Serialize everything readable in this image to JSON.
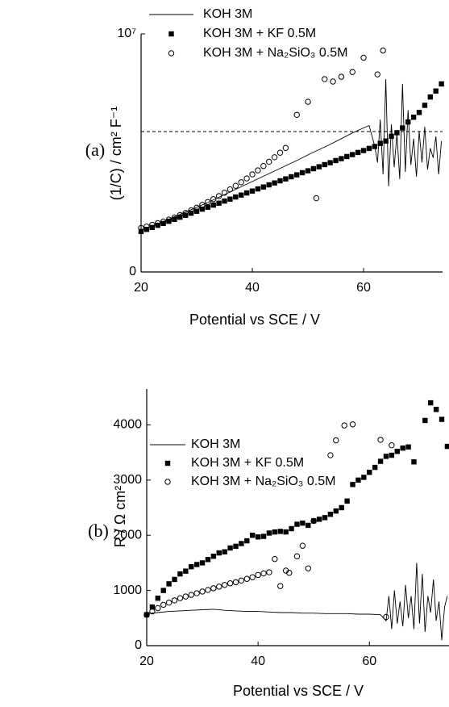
{
  "chart_data": [
    {
      "type": "line",
      "panel_label": "(a)",
      "x_label": "Potential vs SCE / V",
      "y_label": "(1/C) / cm² F⁻¹",
      "xlim": [
        20,
        74.2
      ],
      "xticks": [
        20,
        40,
        60
      ],
      "ylim": [
        0,
        10000000
      ],
      "yticks": [
        0,
        {
          "value": 10000000,
          "label": "10⁷"
        }
      ],
      "reference_line": 5900000,
      "reference_line_style": "dashed",
      "series": [
        {
          "name": "KOH 3M",
          "style": "line",
          "color": "#000000",
          "x": [
            20,
            22,
            24,
            26,
            28,
            30,
            32,
            34,
            36,
            38,
            40,
            42,
            44,
            46,
            48,
            50,
            52,
            54,
            56,
            58,
            60,
            61,
            62,
            62.5,
            63,
            63.5,
            64,
            64.5,
            65,
            65.5,
            66,
            66.5,
            67,
            67.5,
            68,
            68.5,
            69,
            69.5,
            70,
            70.5,
            71,
            71.5,
            72,
            72.5,
            73,
            73.5,
            74
          ],
          "values": [
            1750000,
            1930000,
            2120000,
            2320000,
            2520000,
            2720000,
            2920000,
            3140000,
            3360000,
            3580000,
            3800000,
            4020000,
            4240000,
            4460000,
            4680000,
            4920000,
            5140000,
            5360000,
            5600000,
            5840000,
            6050000,
            6150000,
            5300000,
            4600000,
            6400000,
            4100000,
            8100000,
            3600000,
            6200000,
            4400000,
            5800000,
            3900000,
            7900000,
            4200000,
            6800000,
            4500000,
            5600000,
            4000000,
            5900000,
            4600000,
            6100000,
            4300000,
            5200000,
            4800000,
            5700000,
            4100000,
            5500000
          ]
        },
        {
          "name": "KOH 3M + KF 0.5M",
          "style": "square",
          "color": "#000000",
          "x": [
            20,
            21,
            22,
            23,
            24,
            25,
            26,
            27,
            28,
            29,
            30,
            31,
            32,
            33,
            34,
            35,
            36,
            37,
            38,
            39,
            40,
            41,
            42,
            43,
            44,
            45,
            46,
            47,
            48,
            49,
            50,
            51,
            52,
            53,
            54,
            55,
            56,
            57,
            58,
            59,
            60,
            61,
            62,
            63,
            64,
            65,
            66,
            67,
            68,
            69,
            70,
            71,
            72,
            73,
            74
          ],
          "values": [
            1700000,
            1790000,
            1870000,
            1960000,
            2040000,
            2130000,
            2210000,
            2300000,
            2380000,
            2470000,
            2550000,
            2640000,
            2720000,
            2810000,
            2890000,
            2980000,
            3060000,
            3150000,
            3230000,
            3320000,
            3400000,
            3490000,
            3570000,
            3660000,
            3740000,
            3830000,
            3910000,
            4000000,
            4080000,
            4170000,
            4250000,
            4340000,
            4420000,
            4510000,
            4590000,
            4680000,
            4760000,
            4850000,
            4930000,
            5020000,
            5100000,
            5190000,
            5270000,
            5400000,
            5500000,
            5700000,
            5850000,
            6050000,
            6300000,
            6500000,
            6700000,
            7000000,
            7350000,
            7600000,
            7900000
          ]
        },
        {
          "name": "KOH 3M + Na₂SiO₃ 0.5M",
          "style": "circle",
          "color": "#000000",
          "x": [
            20,
            21,
            22,
            23,
            24,
            25,
            26,
            27,
            28,
            29,
            30,
            31,
            32,
            33,
            34,
            35,
            36,
            37,
            38,
            39,
            40,
            41,
            42,
            43,
            44,
            45,
            46,
            48,
            50,
            51.5,
            53,
            54.5,
            56,
            58,
            60,
            62.5,
            63.5
          ],
          "values": [
            1850000,
            1910000,
            1980000,
            2050000,
            2120000,
            2200000,
            2290000,
            2390000,
            2480000,
            2590000,
            2700000,
            2820000,
            2940000,
            3060000,
            3190000,
            3330000,
            3470000,
            3620000,
            3770000,
            3930000,
            4100000,
            4270000,
            4450000,
            4630000,
            4820000,
            5010000,
            5210000,
            6600000,
            7150000,
            3100000,
            8100000,
            8000000,
            8200000,
            8400000,
            9000000,
            8300000,
            9300000
          ]
        }
      ]
    },
    {
      "type": "line",
      "panel_label": "(b)",
      "x_label": "Potential vs SCE / V",
      "y_label": "R / Ω cm²",
      "xlim": [
        20,
        74.3
      ],
      "xticks": [
        20,
        40,
        60
      ],
      "ylim": [
        0,
        4650
      ],
      "yticks": [
        0,
        1000,
        2000,
        3000,
        4000
      ],
      "series": [
        {
          "name": "KOH 3M",
          "style": "line",
          "color": "#000000",
          "x": [
            20,
            22,
            24,
            26,
            28,
            30,
            32,
            34,
            36,
            38,
            40,
            42,
            44,
            46,
            48,
            50,
            52,
            54,
            56,
            58,
            60,
            62,
            63,
            63.5,
            64,
            64.5,
            65,
            65.5,
            66,
            66.5,
            67,
            67.5,
            68,
            68.5,
            69,
            69.5,
            70,
            70.5,
            71,
            71.5,
            72,
            72.5,
            73,
            73.5,
            74
          ],
          "values": [
            580,
            600,
            620,
            630,
            640,
            650,
            660,
            640,
            630,
            620,
            620,
            610,
            600,
            600,
            590,
            590,
            580,
            580,
            580,
            570,
            570,
            560,
            450,
            900,
            300,
            1000,
            400,
            800,
            350,
            1100,
            500,
            900,
            300,
            1500,
            400,
            1300,
            250,
            900,
            600,
            1200,
            450,
            800,
            100,
            700,
            900
          ]
        },
        {
          "name": "KOH 3M + KF 0.5M",
          "style": "square",
          "color": "#000000",
          "x": [
            20,
            21,
            22,
            23,
            24,
            25,
            26,
            27,
            28,
            29,
            30,
            31,
            32,
            33,
            34,
            35,
            36,
            37,
            38,
            39,
            40,
            41,
            42,
            43,
            44,
            45,
            46,
            47,
            48,
            49,
            50,
            51,
            52,
            53,
            54,
            55,
            56,
            57,
            58,
            59,
            60,
            61,
            62,
            63,
            64,
            65,
            66,
            67,
            68,
            70,
            71,
            72,
            73,
            74
          ],
          "values": [
            560,
            700,
            860,
            1000,
            1120,
            1200,
            1300,
            1350,
            1430,
            1470,
            1500,
            1560,
            1620,
            1680,
            1700,
            1770,
            1800,
            1850,
            1900,
            2000,
            1970,
            1980,
            2040,
            2060,
            2070,
            2060,
            2120,
            2200,
            2220,
            2180,
            2260,
            2290,
            2320,
            2380,
            2440,
            2500,
            2620,
            2920,
            3000,
            3050,
            3140,
            3230,
            3340,
            3430,
            3450,
            3520,
            3580,
            3600,
            3330,
            4080,
            4400,
            4280,
            4100,
            3610
          ]
        },
        {
          "name": "KOH 3M + Na₂SiO₃ 0.5M",
          "style": "circle",
          "color": "#000000",
          "x": [
            20,
            21,
            22,
            23,
            24,
            25,
            26,
            27,
            28,
            29,
            30,
            31,
            32,
            33,
            34,
            35,
            36,
            37,
            38,
            39,
            40,
            41,
            42,
            43,
            44,
            45,
            45.6,
            47,
            48,
            49,
            50,
            53,
            54,
            55.5,
            57,
            62,
            63,
            64
          ],
          "values": [
            560,
            620,
            680,
            740,
            780,
            820,
            860,
            890,
            920,
            950,
            980,
            1010,
            1040,
            1070,
            1100,
            1130,
            1150,
            1180,
            1210,
            1240,
            1280,
            1310,
            1330,
            1570,
            1080,
            1360,
            1320,
            1620,
            1810,
            1400,
            2260,
            3450,
            3720,
            3990,
            4010,
            3730,
            520,
            3630
          ]
        }
      ]
    }
  ]
}
